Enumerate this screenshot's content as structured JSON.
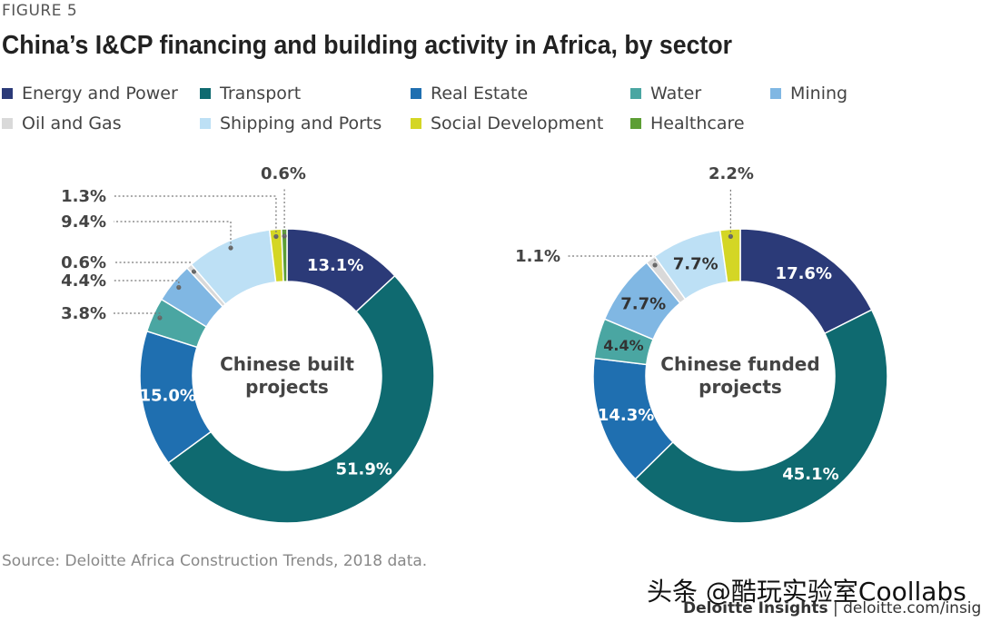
{
  "figure_label": "FIGURE 5",
  "title": "China’s I&CP financing and building activity in Africa, by sector",
  "legend": [
    {
      "label": "Energy and Power",
      "color": "#2b3a78"
    },
    {
      "label": "Transport",
      "color": "#0f6a70"
    },
    {
      "label": "Real Estate",
      "color": "#1f6fb0"
    },
    {
      "label": "Water",
      "color": "#4aa6a2"
    },
    {
      "label": "Mining",
      "color": "#80b7e3"
    },
    {
      "label": "Oil and Gas",
      "color": "#d9d9d9"
    },
    {
      "label": "Shipping and Ports",
      "color": "#bde0f5"
    },
    {
      "label": "Social Development",
      "color": "#d4d625"
    },
    {
      "label": "Healthcare",
      "color": "#5d9e35"
    }
  ],
  "chart_data": [
    {
      "type": "pie",
      "donut": true,
      "center_label": [
        "Chinese built",
        "projects"
      ],
      "slices": [
        {
          "sector": "Energy and Power",
          "value": 13.1,
          "label": "13.1%"
        },
        {
          "sector": "Transport",
          "value": 51.9,
          "label": "51.9%"
        },
        {
          "sector": "Real Estate",
          "value": 15.0,
          "label": "15.0%"
        },
        {
          "sector": "Water",
          "value": 3.8,
          "label": "3.8%"
        },
        {
          "sector": "Mining",
          "value": 4.4,
          "label": "4.4%"
        },
        {
          "sector": "Oil and Gas",
          "value": 0.6,
          "label": "0.6%"
        },
        {
          "sector": "Shipping and Ports",
          "value": 9.4,
          "label": "9.4%"
        },
        {
          "sector": "Social Development",
          "value": 1.3,
          "label": "1.3%"
        },
        {
          "sector": "Healthcare",
          "value": 0.6,
          "label": "0.6%"
        }
      ]
    },
    {
      "type": "pie",
      "donut": true,
      "center_label": [
        "Chinese funded",
        "projects"
      ],
      "slices": [
        {
          "sector": "Energy and Power",
          "value": 17.6,
          "label": "17.6%"
        },
        {
          "sector": "Transport",
          "value": 45.1,
          "label": "45.1%"
        },
        {
          "sector": "Real Estate",
          "value": 14.3,
          "label": "14.3%"
        },
        {
          "sector": "Water",
          "value": 4.4,
          "label": "4.4%"
        },
        {
          "sector": "Mining",
          "value": 7.7,
          "label": "7.7%"
        },
        {
          "sector": "Oil and Gas",
          "value": 1.1,
          "label": "1.1%"
        },
        {
          "sector": "Shipping and Ports",
          "value": 7.7,
          "label": "7.7%"
        },
        {
          "sector": "Social Development",
          "value": 2.2,
          "label": "2.2%"
        }
      ]
    }
  ],
  "source": "Source: Deloitte Africa Construction Trends, 2018 data.",
  "watermark": "头条 @酷玩实验室Coollabs",
  "footer": {
    "brand": "Deloitte Insights",
    "separator": " | ",
    "site": "deloitte.com/insights"
  }
}
